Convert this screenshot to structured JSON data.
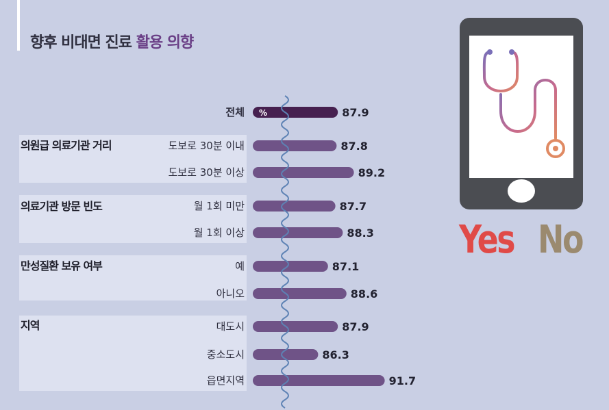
{
  "title": {
    "main": "향후 비대면 진료",
    "accent": "활용 의향"
  },
  "groups": [
    {
      "label": "의원급 의료기관 거리"
    },
    {
      "label": "의료기관 방문 빈도"
    },
    {
      "label": "만성질환 보유 여부"
    },
    {
      "label": "지역"
    }
  ],
  "total_label": "전체",
  "unit": "%",
  "chart_data": {
    "type": "bar",
    "orientation": "horizontal",
    "title": "향후 비대면 진료 활용 의향",
    "unit": "%",
    "categories": [
      "전체",
      "도보로 30분 이내",
      "도보로 30분 이상",
      "월 1회 미만",
      "월 1회 이상",
      "예",
      "아니오",
      "대도시",
      "중소도시",
      "읍면지역"
    ],
    "values": [
      87.9,
      87.8,
      89.2,
      87.7,
      88.3,
      87.1,
      88.6,
      87.9,
      86.3,
      91.7
    ],
    "highlight": "전체",
    "colors": {
      "total": "#46204f",
      "bar": "#6f5387"
    },
    "axis_break": true
  },
  "illustration": {
    "icon": "smartphone-stethoscope-icon",
    "yes_text": "Yes",
    "no_text": "No",
    "yes_color": "#e04a47",
    "no_color": "#9b8a6f"
  }
}
